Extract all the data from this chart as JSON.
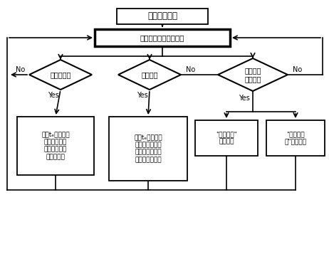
{
  "title": "站域后备保护",
  "node2": "接收、分配开关量信息",
  "diamond1": "断路器失灵",
  "diamond2": "死区故障",
  "diamond3": "故障识别\n启动条件",
  "box1": "延时tₑ范围内持\n续满足，则跳\n该断路器相邻\n所有断路器",
  "box2": "延时tₑ范围内持\n续满足，则跳开\n正方向阻抗元件\n启动侧的断路器",
  "box3": "\"母线故障\"\n判断模块",
  "box4": "\"变压器故\n障\"判断模块",
  "no_label": "No",
  "yes_label": "Yes",
  "bg_color": "#ffffff",
  "line_color": "#000000",
  "font_size": 7.0,
  "title_font_size": 8.5
}
